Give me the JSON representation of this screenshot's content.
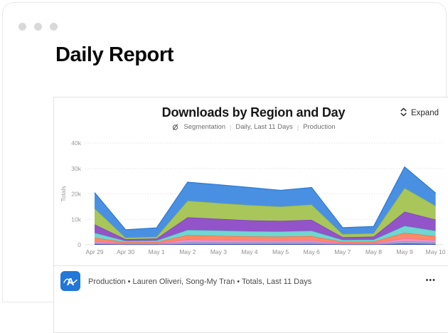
{
  "window": {
    "title": "Daily Report"
  },
  "report": {
    "title": "Downloads by Region and Day",
    "expand_label": "Expand",
    "meta": {
      "chart_type": "Segmentation",
      "separator": "|",
      "range": "Daily, Last 11 Days",
      "environment": "Production"
    },
    "footer": {
      "text": "Production • Lauren Oliveri, Song-My Tran • Totals, Last 11 Days",
      "menu_label": "•••"
    }
  },
  "colors": {
    "accent_blue": "#2277d8",
    "border": "#e2e2e2",
    "grid": "#dcdcdc",
    "axis_text": "#9a9a9a"
  },
  "chart_data": {
    "type": "area",
    "stacked": true,
    "title": "Downloads by Region and Day",
    "xlabel": "",
    "ylabel": "Totals",
    "ylim": [
      0,
      40000
    ],
    "yticks": [
      {
        "value": 0,
        "label": "0"
      },
      {
        "value": 10000,
        "label": "10k"
      },
      {
        "value": 20000,
        "label": "20k"
      },
      {
        "value": 30000,
        "label": "30k"
      },
      {
        "value": 40000,
        "label": "40k"
      }
    ],
    "grid": "horizontal-dotted",
    "legend": "none",
    "categories": [
      "Apr 29",
      "Apr 30",
      "May 1",
      "May 2",
      "May 3",
      "May 4",
      "May 5",
      "May 6",
      "May 7",
      "May 8",
      "May 9",
      "May 10"
    ],
    "series": [
      {
        "name": "navy",
        "fill": "#3f51b5",
        "line": "#32409e",
        "values": [
          300,
          150,
          150,
          300,
          300,
          300,
          300,
          300,
          150,
          150,
          500,
          300
        ]
      },
      {
        "name": "lavender",
        "fill": "#9fa8da",
        "line": "#8491d1",
        "values": [
          500,
          200,
          200,
          800,
          700,
          700,
          700,
          700,
          250,
          250,
          900,
          700
        ]
      },
      {
        "name": "pink",
        "fill": "#f191c1",
        "line": "#e86aa8",
        "values": [
          700,
          250,
          300,
          1000,
          900,
          800,
          700,
          800,
          300,
          300,
          1200,
          900
        ]
      },
      {
        "name": "salmon",
        "fill": "#ff8a66",
        "line": "#f4693f",
        "values": [
          1300,
          400,
          450,
          1700,
          1600,
          1500,
          1500,
          1600,
          500,
          550,
          2100,
          1500
        ]
      },
      {
        "name": "teal",
        "fill": "#6fd6d0",
        "line": "#45c4bc",
        "values": [
          1900,
          500,
          550,
          2000,
          2100,
          2000,
          2000,
          2100,
          700,
          750,
          2700,
          2100
        ]
      },
      {
        "name": "purple",
        "fill": "#9254c8",
        "line": "#7d3cb8",
        "values": [
          3300,
          700,
          800,
          5000,
          4600,
          4300,
          4200,
          4300,
          1100,
          1200,
          5600,
          4400
        ]
      },
      {
        "name": "green",
        "fill": "#a8c65a",
        "line": "#93b43e",
        "values": [
          6300,
          600,
          700,
          6500,
          6200,
          6000,
          5600,
          6000,
          1200,
          1300,
          9300,
          5400
        ]
      },
      {
        "name": "blue",
        "fill": "#4a90e2",
        "line": "#2f7bd4",
        "values": [
          6200,
          3100,
          3500,
          7300,
          7200,
          6900,
          6400,
          6700,
          2500,
          2700,
          8300,
          5000
        ]
      }
    ]
  }
}
